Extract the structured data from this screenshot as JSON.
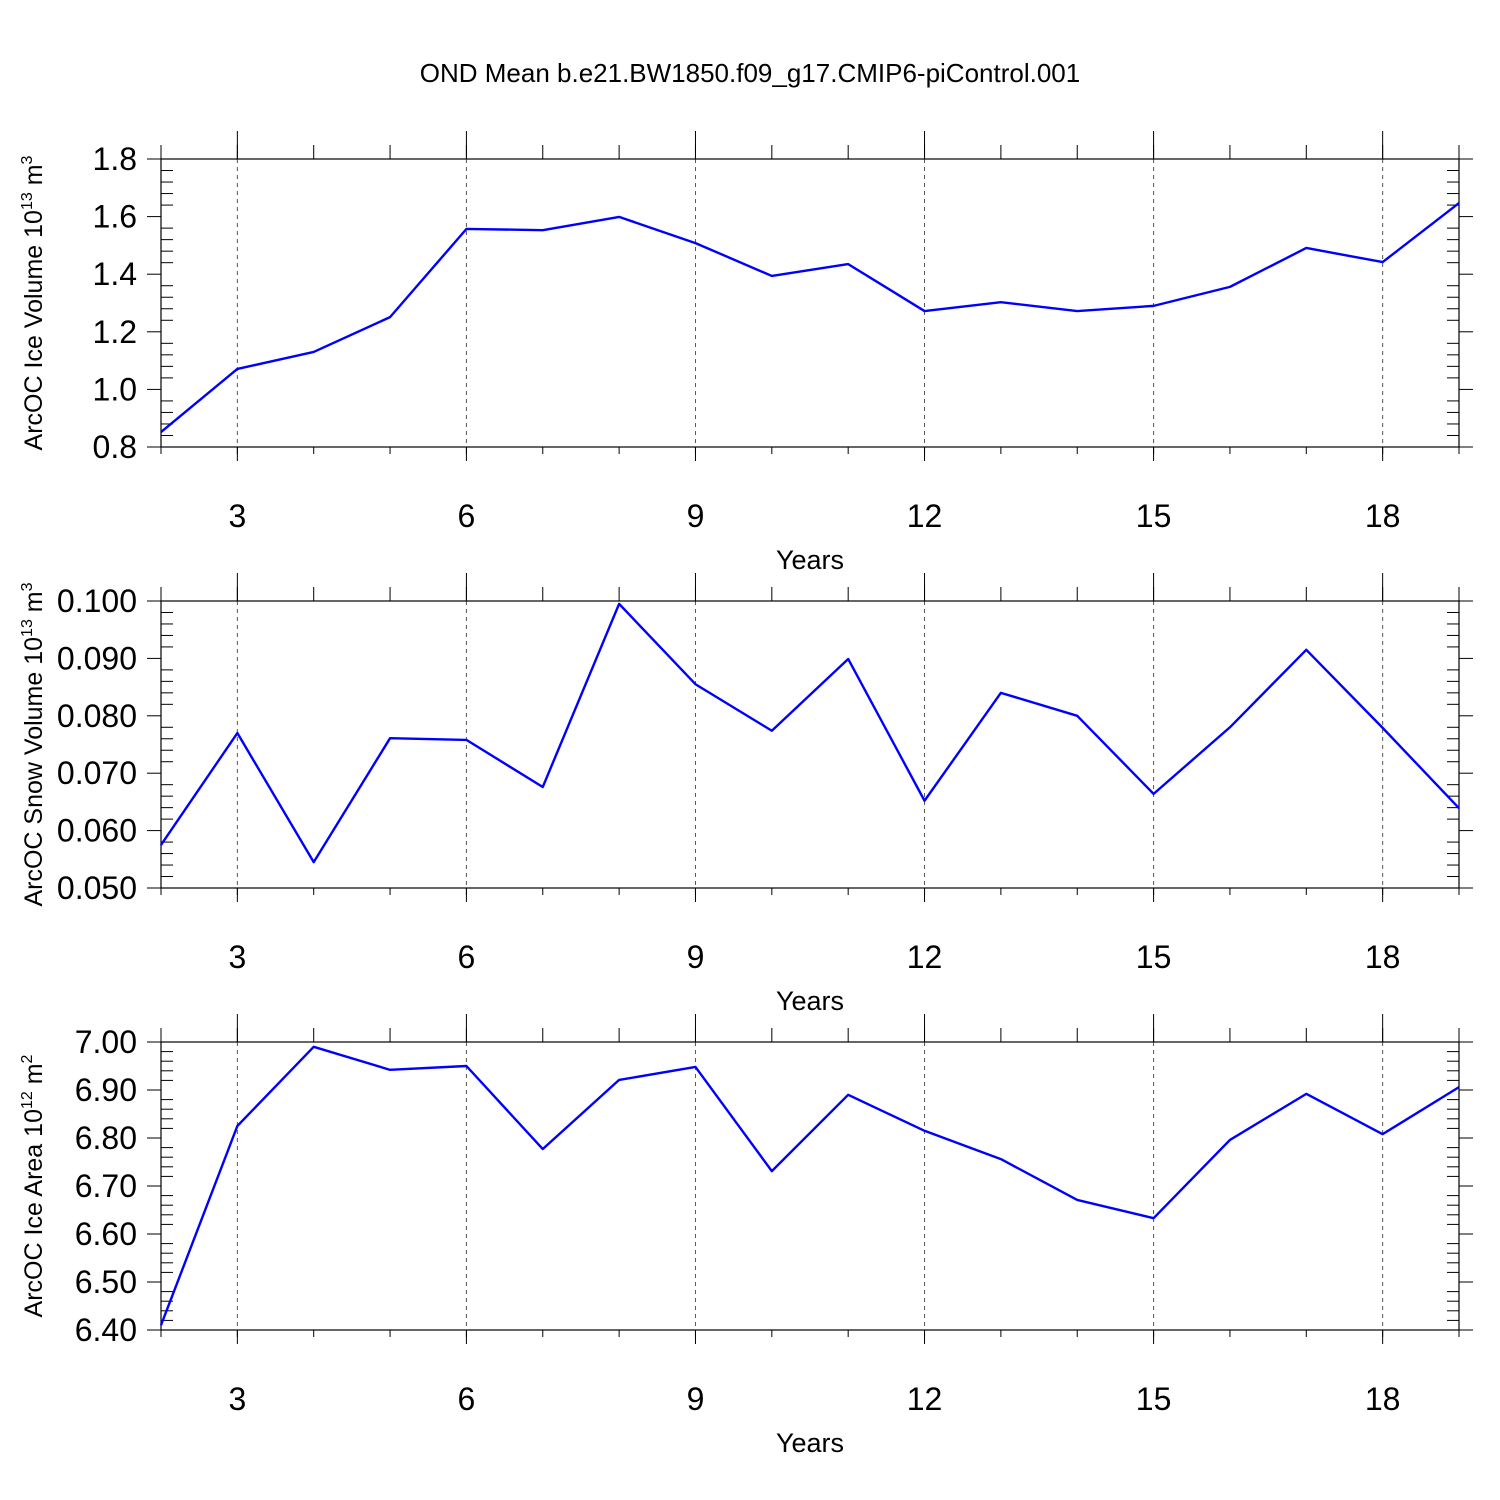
{
  "title": "OND Mean b.e21.BW1850.f09_g17.CMIP6-piControl.001",
  "chart_data": [
    {
      "type": "line",
      "ylabel": [
        "ArcOC Ice Volume 10",
        "13",
        " m",
        "3"
      ],
      "xlabel": "Years",
      "x": [
        2,
        3,
        4,
        5,
        6,
        7,
        8,
        9,
        10,
        11,
        12,
        13,
        14,
        15,
        16,
        17,
        18,
        19
      ],
      "series": [
        {
          "color": "blue",
          "values": [
            0.852,
            1.071,
            1.13,
            1.251,
            1.557,
            1.553,
            1.599,
            1.508,
            1.394,
            1.435,
            1.272,
            1.303,
            1.272,
            1.29,
            1.356,
            1.491,
            1.442,
            1.647
          ]
        }
      ],
      "xlim": [
        2,
        19
      ],
      "xticks": [
        3,
        6,
        9,
        12,
        15,
        18
      ],
      "ylim": [
        0.8,
        1.8
      ],
      "yticks": [
        0.8,
        {
          "value": 1,
          "label": "1.0"
        },
        1.2,
        1.4,
        1.6,
        1.8
      ],
      "grid": true
    },
    {
      "type": "line",
      "ylabel": [
        "ArcOC Snow Volume 10",
        "13",
        " m",
        "3"
      ],
      "xlabel": "Years",
      "x": [
        2,
        3,
        4,
        5,
        6,
        7,
        8,
        9,
        10,
        11,
        12,
        13,
        14,
        15,
        16,
        17,
        18,
        19
      ],
      "series": [
        {
          "color": "blue",
          "values": [
            0.0575,
            0.077,
            0.0545,
            0.0761,
            0.0758,
            0.0676,
            0.0995,
            0.0855,
            0.0774,
            0.0899,
            0.0652,
            0.084,
            0.08,
            0.0664,
            0.078,
            0.0915,
            0.0779,
            0.0639
          ]
        }
      ],
      "xlim": [
        2,
        19
      ],
      "xticks": [
        3,
        6,
        9,
        12,
        15,
        18
      ],
      "ylim": [
        0.05,
        0.1
      ],
      "yticks": [
        {
          "value": 0.05,
          "label": "0.050"
        },
        {
          "value": 0.06,
          "label": "0.060"
        },
        {
          "value": 0.07,
          "label": "0.070"
        },
        {
          "value": 0.08,
          "label": "0.080"
        },
        {
          "value": 0.09,
          "label": "0.090"
        },
        {
          "value": 0.1,
          "label": "0.100"
        }
      ],
      "grid": true
    },
    {
      "type": "line",
      "ylabel": [
        "ArcOC Ice Area 10",
        "12",
        " m",
        "2"
      ],
      "xlabel": "Years",
      "x": [
        2,
        3,
        4,
        5,
        6,
        7,
        8,
        9,
        10,
        11,
        12,
        13,
        14,
        15,
        16,
        17,
        18,
        19
      ],
      "series": [
        {
          "color": "blue",
          "values": [
            6.41,
            6.825,
            6.99,
            6.942,
            6.95,
            6.777,
            6.921,
            6.948,
            6.731,
            6.89,
            6.815,
            6.756,
            6.671,
            6.633,
            6.796,
            6.892,
            6.808,
            6.906
          ]
        }
      ],
      "xlim": [
        2,
        19
      ],
      "xticks": [
        3,
        6,
        9,
        12,
        15,
        18
      ],
      "ylim": [
        6.4,
        7.0
      ],
      "yticks": [
        {
          "value": 6.4,
          "label": "6.40"
        },
        {
          "value": 6.5,
          "label": "6.50"
        },
        {
          "value": 6.6,
          "label": "6.60"
        },
        {
          "value": 6.7,
          "label": "6.70"
        },
        {
          "value": 6.8,
          "label": "6.80"
        },
        {
          "value": 6.9,
          "label": "6.90"
        },
        {
          "value": 7,
          "label": "7.00"
        }
      ],
      "grid": true
    }
  ]
}
